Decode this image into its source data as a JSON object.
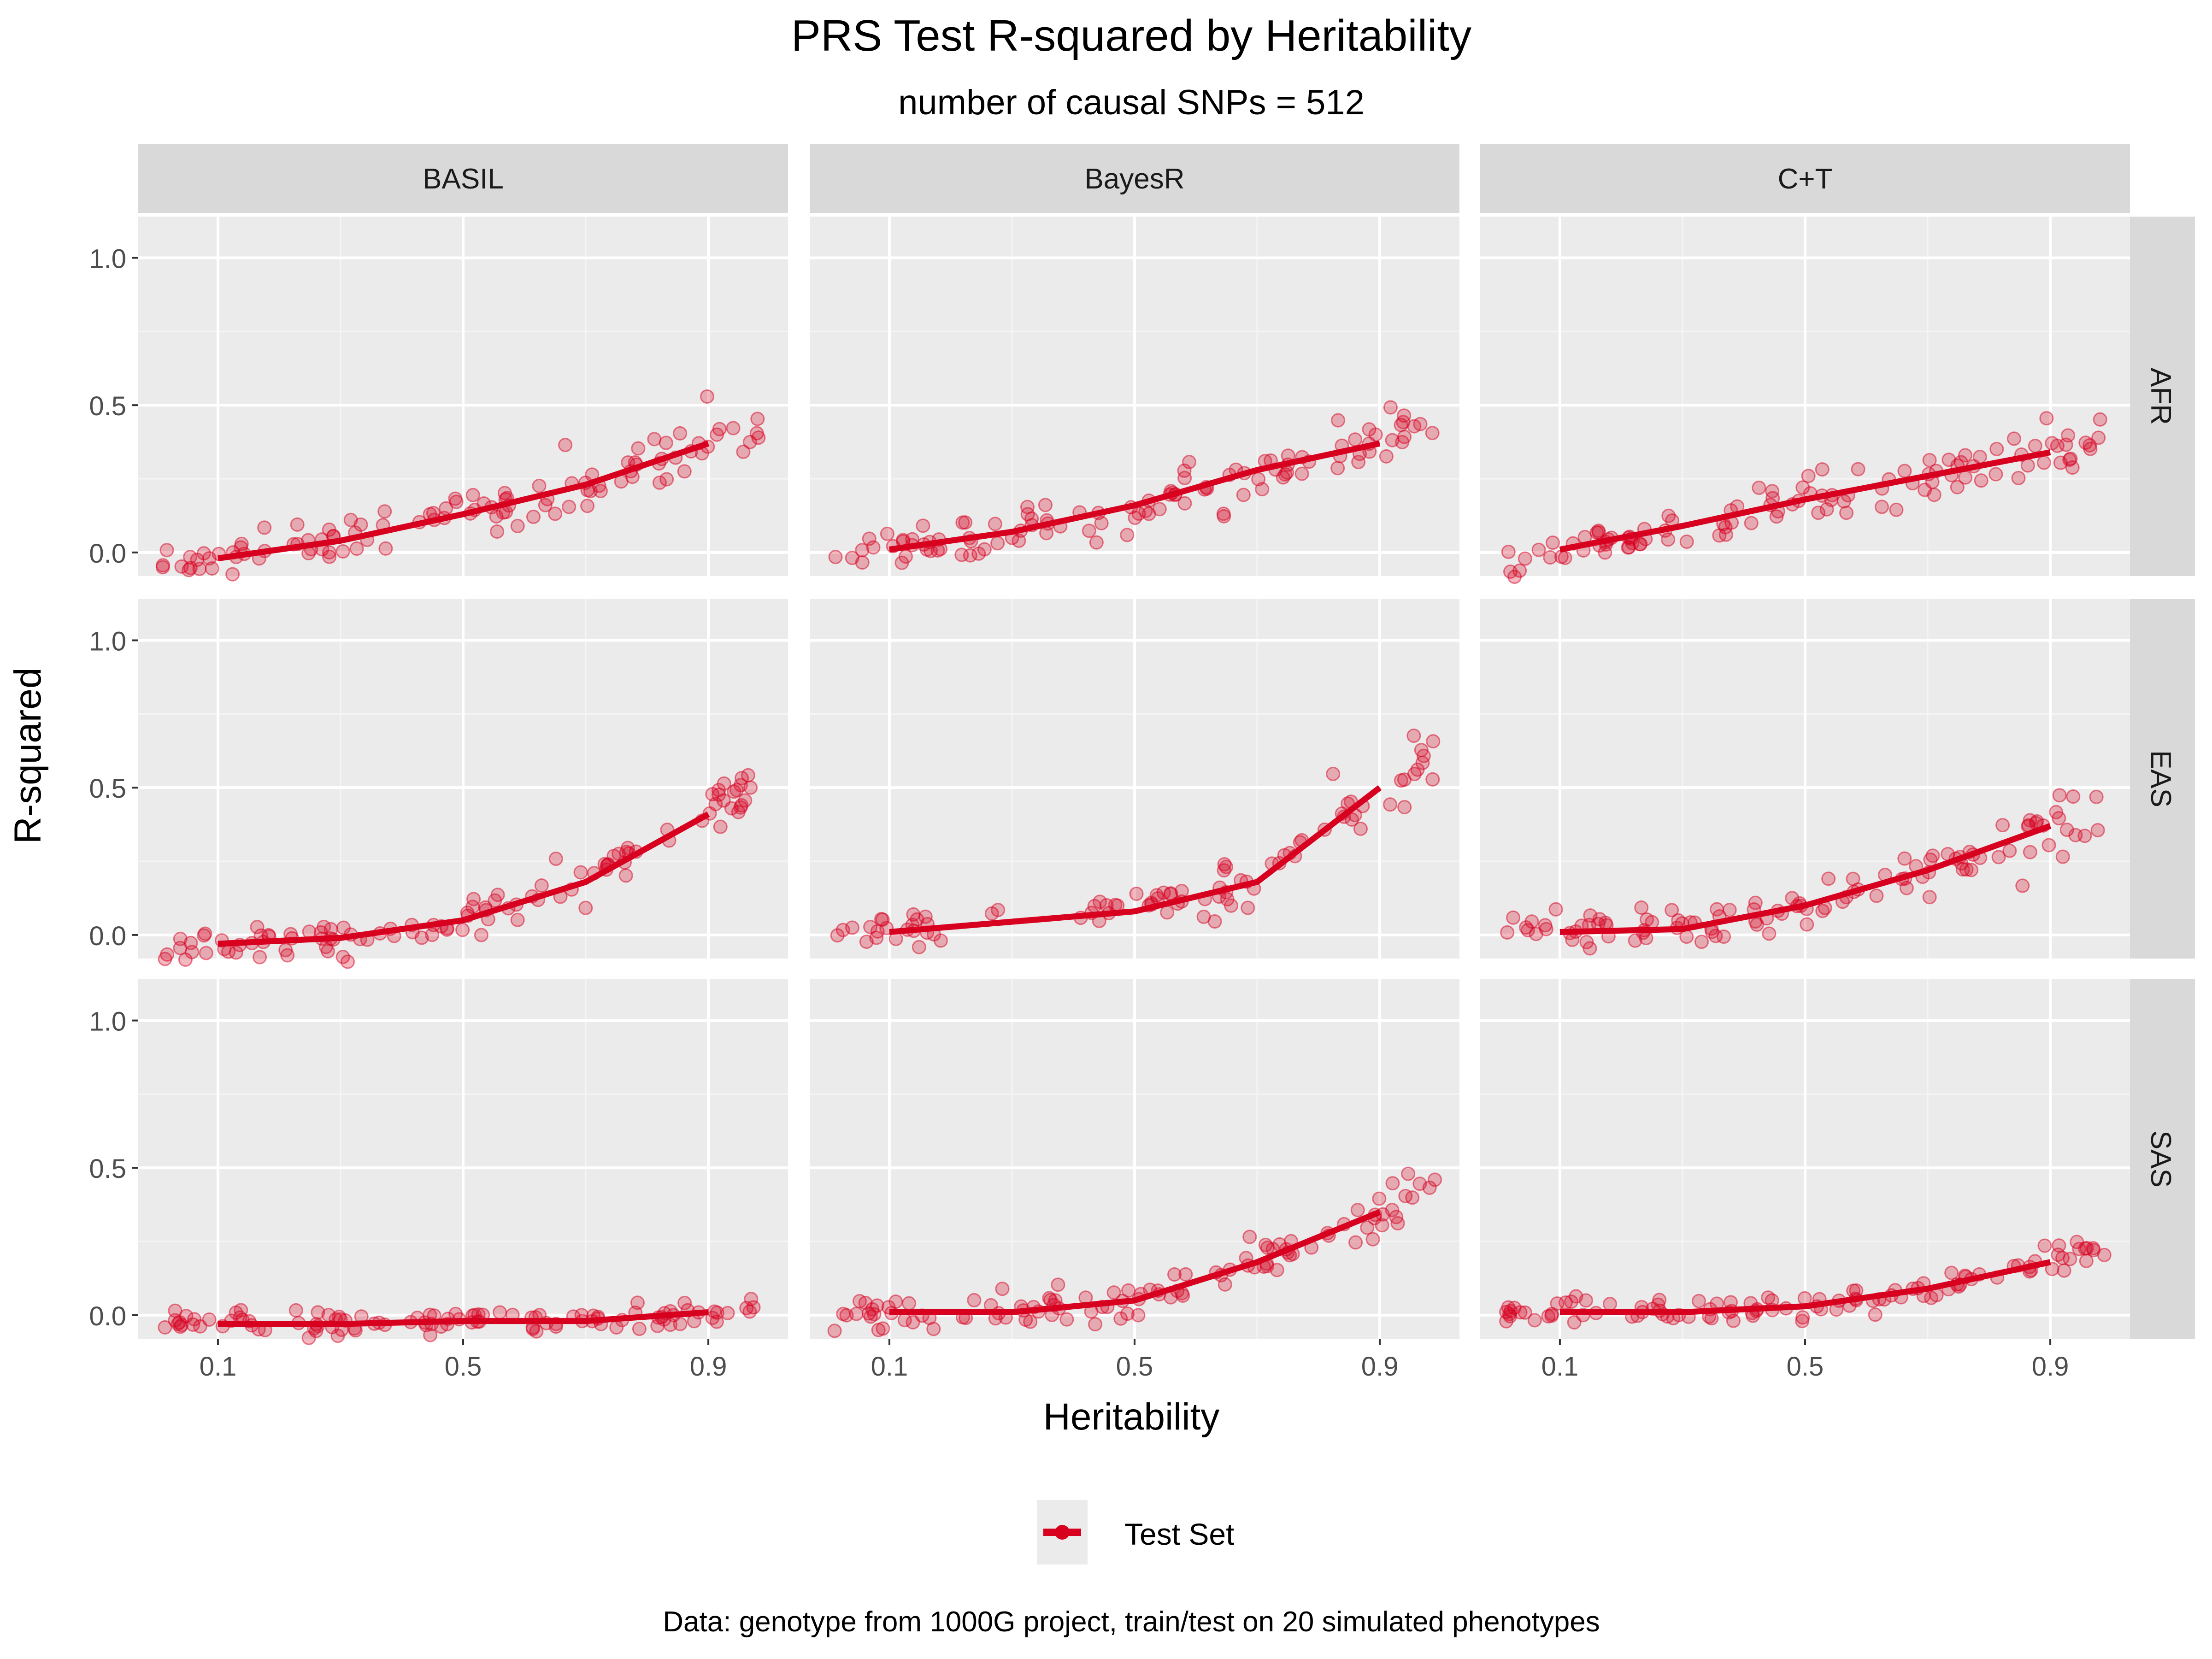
{
  "chart_data": {
    "type": "scatter",
    "title": "PRS Test R-squared by Heritability",
    "subtitle": "number of causal SNPs = 512",
    "xlabel": "Heritability",
    "ylabel": "R-squared",
    "caption": "Data: genotype from 1000G project, train/test on 20 simulated phenotypes",
    "xlim": [
      -0.03,
      1.03
    ],
    "ylim": [
      -0.08,
      1.14
    ],
    "x_ticks": [
      0.1,
      0.5,
      0.9
    ],
    "x_tick_labels": [
      "0.1",
      "0.5",
      "0.9"
    ],
    "y_ticks": [
      0.0,
      0.5,
      1.0
    ],
    "y_tick_labels": [
      "0.0",
      "0.5",
      "1.0"
    ],
    "methods": [
      "BASIL",
      "BayesR",
      "C+T"
    ],
    "populations": [
      "AFR",
      "EAS",
      "SAS"
    ],
    "heritability_levels": [
      0.1,
      0.3,
      0.5,
      0.7,
      0.9
    ],
    "grid": true,
    "color": "#D7001F",
    "legend": {
      "position": "bottom",
      "entries": [
        {
          "name": "Test Set",
          "color": "#D7001F"
        }
      ]
    },
    "series": [
      {
        "name": "Test Set",
        "method": "BASIL",
        "population": "AFR",
        "x": [
          0.1,
          0.3,
          0.5,
          0.7,
          0.9
        ],
        "y": [
          -0.02,
          0.04,
          0.13,
          0.23,
          0.37
        ],
        "spread": 0.06
      },
      {
        "name": "Test Set",
        "method": "BayesR",
        "population": "AFR",
        "x": [
          0.1,
          0.3,
          0.5,
          0.7,
          0.9
        ],
        "y": [
          0.01,
          0.07,
          0.16,
          0.28,
          0.37
        ],
        "spread": 0.06
      },
      {
        "name": "Test Set",
        "method": "C+T",
        "population": "AFR",
        "x": [
          0.1,
          0.3,
          0.5,
          0.7,
          0.9
        ],
        "y": [
          0.01,
          0.09,
          0.18,
          0.26,
          0.34
        ],
        "spread": 0.05
      },
      {
        "name": "Test Set",
        "method": "BASIL",
        "population": "EAS",
        "x": [
          0.1,
          0.3,
          0.5,
          0.7,
          0.9
        ],
        "y": [
          -0.03,
          -0.01,
          0.05,
          0.18,
          0.41
        ],
        "spread": 0.05
      },
      {
        "name": "Test Set",
        "method": "BayesR",
        "population": "EAS",
        "x": [
          0.1,
          0.5,
          0.7,
          0.9
        ],
        "y": [
          0.01,
          0.08,
          0.18,
          0.5
        ],
        "spread": 0.06
      },
      {
        "name": "Test Set",
        "method": "C+T",
        "population": "EAS",
        "x": [
          0.1,
          0.3,
          0.5,
          0.7,
          0.9
        ],
        "y": [
          0.01,
          0.02,
          0.1,
          0.22,
          0.37
        ],
        "spread": 0.06
      },
      {
        "name": "Test Set",
        "method": "BASIL",
        "population": "SAS",
        "x": [
          0.1,
          0.3,
          0.5,
          0.7,
          0.9
        ],
        "y": [
          -0.03,
          -0.03,
          -0.02,
          -0.02,
          0.01
        ],
        "spread": 0.04
      },
      {
        "name": "Test Set",
        "method": "BayesR",
        "population": "SAS",
        "x": [
          0.1,
          0.3,
          0.5,
          0.7,
          0.9
        ],
        "y": [
          0.01,
          0.01,
          0.05,
          0.18,
          0.35
        ],
        "spread": 0.05
      },
      {
        "name": "Test Set",
        "method": "C+T",
        "population": "SAS",
        "x": [
          0.1,
          0.3,
          0.5,
          0.7,
          0.9
        ],
        "y": [
          0.01,
          0.01,
          0.03,
          0.09,
          0.18
        ],
        "spread": 0.04
      }
    ]
  }
}
